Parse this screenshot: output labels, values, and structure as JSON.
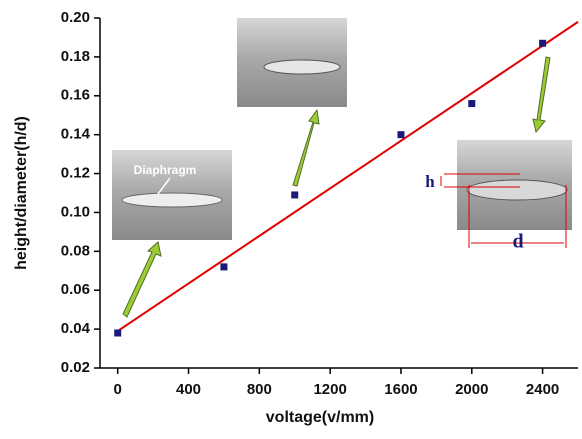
{
  "chart_data": {
    "type": "scatter",
    "x_label": "voltage(v/mm)",
    "y_label": "height/diameter(h/d)",
    "x": [
      0,
      600,
      1000,
      1600,
      2000,
      2400
    ],
    "values": [
      0.038,
      0.072,
      0.109,
      0.14,
      0.156,
      0.187
    ],
    "color": "#1a1a7a",
    "fit": {
      "x": [
        0,
        2600
      ],
      "values": [
        0.039,
        0.198
      ],
      "color": "#e00000"
    },
    "xlim": [
      -100,
      2600
    ],
    "xticks": [
      0,
      400,
      800,
      1200,
      1600,
      2000,
      2400
    ],
    "ylim": [
      0.02,
      0.2
    ],
    "yticks": [
      0.02,
      0.04,
      0.06,
      0.08,
      {
        "value": 0.1,
        "label": "0.10"
      },
      0.12,
      0.14,
      0.16,
      0.18,
      {
        "value": 0.2,
        "label": "0.20"
      }
    ],
    "annotations": [
      "Diaphragm",
      "h",
      "d"
    ]
  }
}
